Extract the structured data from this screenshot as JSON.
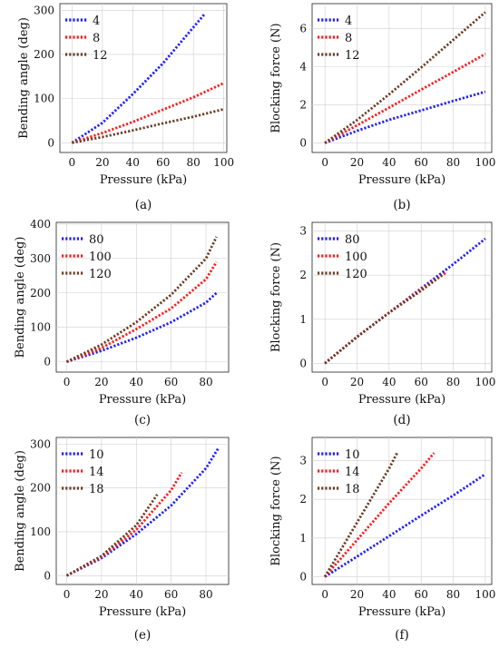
{
  "chart_data": [
    {
      "type": "line",
      "caption": "(a)",
      "xlabel": "Pressure (kPa)",
      "ylabel": "Bending angle (deg)",
      "xlim": [
        -8,
        102
      ],
      "ylim": [
        -22,
        315
      ],
      "xticks": [
        0,
        20,
        40,
        60,
        80,
        100
      ],
      "yticks": [
        0,
        100,
        200,
        300
      ],
      "legend": "top-left",
      "series": [
        {
          "name": "4",
          "color": "#1f1fff",
          "x": [
            0,
            20,
            40,
            60,
            87
          ],
          "y": [
            0,
            45,
            110,
            180,
            290
          ]
        },
        {
          "name": "8",
          "color": "#ff1a1a",
          "x": [
            0,
            20,
            40,
            60,
            80,
            100
          ],
          "y": [
            0,
            22,
            47,
            75,
            103,
            135
          ]
        },
        {
          "name": "12",
          "color": "#6b3e26",
          "x": [
            0,
            20,
            40,
            60,
            80,
            100
          ],
          "y": [
            0,
            13,
            28,
            44,
            59,
            76
          ]
        }
      ]
    },
    {
      "type": "line",
      "caption": "(b)",
      "xlabel": "Pressure (kPa)",
      "ylabel": "Blocking force (N)",
      "xlim": [
        -8,
        104
      ],
      "ylim": [
        -0.5,
        7.3
      ],
      "xticks": [
        0,
        20,
        40,
        60,
        80,
        100
      ],
      "yticks": [
        0,
        2,
        4,
        6
      ],
      "legend": "top-left",
      "series": [
        {
          "name": "4",
          "color": "#1f1fff",
          "x": [
            0,
            20,
            40,
            60,
            80,
            100
          ],
          "y": [
            0,
            0.63,
            1.21,
            1.7,
            2.2,
            2.68
          ]
        },
        {
          "name": "8",
          "color": "#ff1a1a",
          "x": [
            0,
            20,
            40,
            60,
            80,
            100
          ],
          "y": [
            0,
            0.92,
            1.85,
            2.79,
            3.72,
            4.66
          ]
        },
        {
          "name": "12",
          "color": "#6b3e26",
          "x": [
            0,
            20,
            40,
            60,
            80,
            100
          ],
          "y": [
            0,
            1.2,
            2.55,
            3.95,
            5.4,
            6.85
          ]
        }
      ]
    },
    {
      "type": "line",
      "caption": "(c)",
      "xlabel": "Pressure (kPa)",
      "ylabel": "Bending angle (deg)",
      "xlim": [
        -6,
        93
      ],
      "ylim": [
        -30,
        405
      ],
      "xticks": [
        0,
        20,
        40,
        60,
        80
      ],
      "yticks": [
        0,
        100,
        200,
        300,
        400
      ],
      "legend": "top-left",
      "series": [
        {
          "name": "80",
          "color": "#1f1fff",
          "x": [
            0,
            20,
            40,
            60,
            80,
            86
          ],
          "y": [
            0,
            32,
            70,
            115,
            172,
            200
          ]
        },
        {
          "name": "100",
          "color": "#ff1a1a",
          "x": [
            0,
            20,
            40,
            60,
            80,
            86
          ],
          "y": [
            0,
            40,
            95,
            155,
            240,
            290
          ]
        },
        {
          "name": "120",
          "color": "#6b3e26",
          "x": [
            0,
            20,
            40,
            60,
            80,
            86
          ],
          "y": [
            0,
            50,
            115,
            195,
            300,
            363
          ]
        }
      ]
    },
    {
      "type": "line",
      "caption": "(d)",
      "xlabel": "Pressure (kPa)",
      "ylabel": "Blocking force (N)",
      "xlim": [
        -8,
        104
      ],
      "ylim": [
        -0.2,
        3.2
      ],
      "xticks": [
        0,
        20,
        40,
        60,
        80,
        100
      ],
      "yticks": [
        0,
        1,
        2,
        3
      ],
      "legend": "top-left",
      "series": [
        {
          "name": "80",
          "color": "#1f1fff",
          "x": [
            0,
            20,
            40,
            60,
            80,
            100
          ],
          "y": [
            0,
            0.6,
            1.15,
            1.7,
            2.25,
            2.83
          ]
        },
        {
          "name": "100",
          "color": "#ff1a1a",
          "x": [
            0,
            20,
            40,
            60,
            76
          ],
          "y": [
            0,
            0.6,
            1.15,
            1.68,
            2.07
          ]
        },
        {
          "name": "120",
          "color": "#6b3e26",
          "x": [
            0,
            20,
            40,
            60,
            73
          ],
          "y": [
            0,
            0.6,
            1.15,
            1.65,
            2.0
          ]
        }
      ]
    },
    {
      "type": "line",
      "caption": "(e)",
      "xlabel": "Pressure (kPa)",
      "ylabel": "Bending angle (deg)",
      "xlim": [
        -6,
        93
      ],
      "ylim": [
        -20,
        315
      ],
      "xticks": [
        0,
        20,
        40,
        60,
        80
      ],
      "yticks": [
        0,
        100,
        200,
        300
      ],
      "legend": "top-left",
      "series": [
        {
          "name": "10",
          "color": "#1f1fff",
          "x": [
            0,
            20,
            40,
            60,
            80,
            87
          ],
          "y": [
            0,
            40,
            95,
            160,
            245,
            290
          ]
        },
        {
          "name": "14",
          "color": "#ff1a1a",
          "x": [
            0,
            20,
            40,
            60,
            66
          ],
          "y": [
            0,
            42,
            105,
            195,
            235
          ]
        },
        {
          "name": "18",
          "color": "#6b3e26",
          "x": [
            0,
            20,
            40,
            52
          ],
          "y": [
            0,
            45,
            115,
            185
          ]
        }
      ]
    },
    {
      "type": "line",
      "caption": "(f)",
      "xlabel": "Pressure (kPa)",
      "ylabel": "Blocking force (N)",
      "xlim": [
        -8,
        104
      ],
      "ylim": [
        -0.2,
        3.6
      ],
      "xticks": [
        0,
        20,
        40,
        60,
        80,
        100
      ],
      "yticks": [
        0,
        1,
        2,
        3
      ],
      "legend": "top-left",
      "series": [
        {
          "name": "10",
          "color": "#1f1fff",
          "x": [
            0,
            20,
            40,
            60,
            80,
            100
          ],
          "y": [
            0,
            0.52,
            1.05,
            1.58,
            2.1,
            2.65
          ]
        },
        {
          "name": "14",
          "color": "#ff1a1a",
          "x": [
            0,
            20,
            40,
            60,
            68
          ],
          "y": [
            0,
            0.95,
            1.9,
            2.8,
            3.2
          ]
        },
        {
          "name": "18",
          "color": "#6b3e26",
          "x": [
            0,
            20,
            40,
            45
          ],
          "y": [
            0,
            1.4,
            2.8,
            3.2
          ]
        }
      ]
    }
  ]
}
